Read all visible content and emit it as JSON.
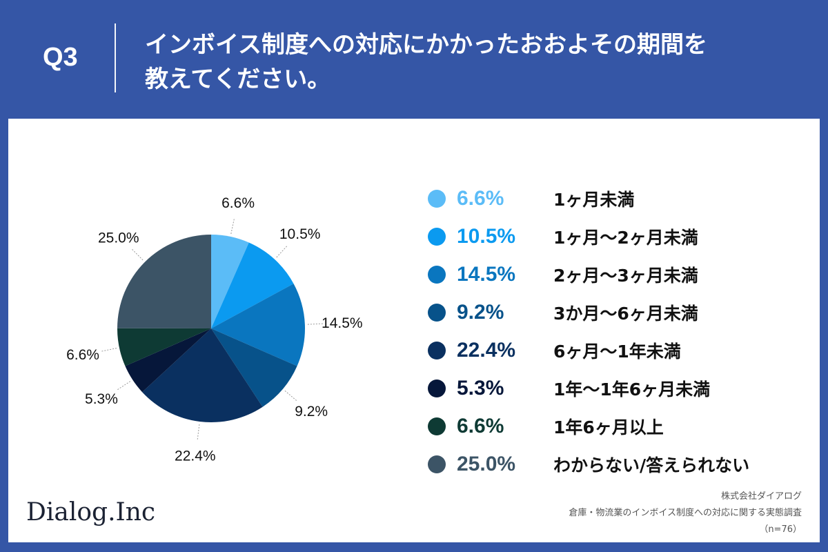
{
  "header": {
    "question_label": "Q3",
    "title_line1": "インボイス制度への対応にかかったおおよその期間を",
    "title_line2": "教えてください。"
  },
  "chart_data": {
    "type": "pie",
    "start_angle_deg": 0,
    "direction": "clockwise",
    "slices": [
      {
        "label": "1ヶ月未満",
        "value": 6.6,
        "display": "6.6%",
        "color": "#5bbcf7"
      },
      {
        "label": "1ヶ月〜2ヶ月未満",
        "value": 10.5,
        "display": "10.5%",
        "color": "#0b9af0"
      },
      {
        "label": "2ヶ月〜3ヶ月未満",
        "value": 14.5,
        "display": "14.5%",
        "color": "#0a76bf"
      },
      {
        "label": "3か月〜6ヶ月未満",
        "value": 9.2,
        "display": "9.2%",
        "color": "#07528a"
      },
      {
        "label": "6ヶ月〜1年未満",
        "value": 22.4,
        "display": "22.4%",
        "color": "#0a3060"
      },
      {
        "label": "1年〜1年6ヶ月未満",
        "value": 5.3,
        "display": "5.3%",
        "color": "#06173a"
      },
      {
        "label": "1年6ヶ月以上",
        "value": 6.6,
        "display": "6.6%",
        "color": "#0e3a34"
      },
      {
        "label": "わからない/答えられない",
        "value": 25.0,
        "display": "25.0%",
        "color": "#3c5466"
      }
    ],
    "legend_position": "right"
  },
  "footer": {
    "logo_text": "Dialog.Inc",
    "company": "株式会社ダイアログ",
    "survey": "倉庫・物流業のインボイス制度への対応に関する実態調査",
    "sample": "（n=76）"
  }
}
